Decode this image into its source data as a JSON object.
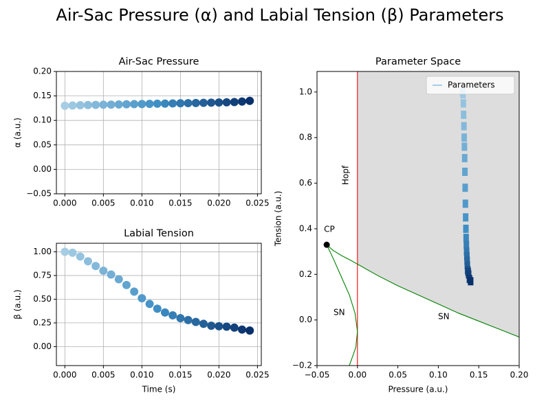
{
  "title": "Air-Sac Pressure (α) and Labial Tension (β) Parameters",
  "chart_data": [
    {
      "type": "scatter",
      "title": "Air-Sac Pressure",
      "ylabel": "α (a.u.)",
      "x": [
        0,
        0.001,
        0.002,
        0.003,
        0.004,
        0.005,
        0.006,
        0.007,
        0.008,
        0.009,
        0.01,
        0.011,
        0.012,
        0.013,
        0.014,
        0.015,
        0.016,
        0.017,
        0.018,
        0.019,
        0.02,
        0.021,
        0.022,
        0.023,
        0.024
      ],
      "values": [
        0.13,
        0.1305,
        0.131,
        0.1313,
        0.1317,
        0.132,
        0.1323,
        0.1326,
        0.1329,
        0.1332,
        0.1335,
        0.1338,
        0.1341,
        0.1344,
        0.1347,
        0.135,
        0.1353,
        0.1356,
        0.1359,
        0.1362,
        0.1366,
        0.137,
        0.1375,
        0.1385,
        0.14
      ],
      "colors": [
        "#a6cde4",
        "#3f8fc5",
        "#08306b"
      ],
      "xlim": [
        -0.0011,
        0.0255
      ],
      "ylim": [
        -0.05,
        0.2
      ],
      "xticks": [
        {
          "value": 0,
          "label": "0.000"
        },
        0.005,
        {
          "value": 0.01,
          "label": "0.010"
        },
        0.015,
        {
          "value": 0.02,
          "label": "0.020"
        },
        0.025
      ],
      "yticks": [
        {
          "value": -0.05,
          "label": "−0.05"
        },
        {
          "value": 0,
          "label": "0.00"
        },
        0.05,
        {
          "value": 0.1,
          "label": "0.10"
        },
        0.15,
        {
          "value": 0.2,
          "label": "0.20"
        }
      ],
      "grid": true
    },
    {
      "type": "scatter",
      "title": "Labial Tension",
      "ylabel": "β (a.u.)",
      "xlabel": "Time (s)",
      "x": [
        0,
        0.001,
        0.002,
        0.003,
        0.004,
        0.005,
        0.006,
        0.007,
        0.008,
        0.009,
        0.01,
        0.011,
        0.012,
        0.013,
        0.014,
        0.015,
        0.016,
        0.017,
        0.018,
        0.019,
        0.02,
        0.021,
        0.022,
        0.023,
        0.024
      ],
      "values": [
        1.0,
        0.99,
        0.95,
        0.9,
        0.85,
        0.8,
        0.76,
        0.71,
        0.65,
        0.58,
        0.51,
        0.45,
        0.4,
        0.36,
        0.33,
        0.3,
        0.28,
        0.26,
        0.24,
        0.22,
        0.215,
        0.21,
        0.2,
        0.18,
        0.17
      ],
      "colors": [
        "#a6cde4",
        "#3f8fc5",
        "#08306b"
      ],
      "xlim": [
        -0.0011,
        0.0255
      ],
      "ylim": [
        -0.2,
        1.09
      ],
      "xticks": [
        {
          "value": 0,
          "label": "0.000"
        },
        0.005,
        {
          "value": 0.01,
          "label": "0.010"
        },
        0.015,
        {
          "value": 0.02,
          "label": "0.020"
        },
        0.025
      ],
      "yticks": [
        {
          "value": 0,
          "label": "0.00"
        },
        0.25,
        {
          "value": 0.5,
          "label": "0.50"
        },
        0.75,
        {
          "value": 1,
          "label": "1.00"
        }
      ],
      "grid": true
    },
    {
      "type": "parameter_space",
      "title": "Parameter Space",
      "xlabel": "Pressure (a.u.)",
      "ylabel": "Tension (a.u.)",
      "series": [
        {
          "name": "Parameters",
          "x": [
            0.13,
            0.1305,
            0.131,
            0.1313,
            0.1317,
            0.132,
            0.1323,
            0.1326,
            0.1329,
            0.1332,
            0.1335,
            0.1338,
            0.1341,
            0.1344,
            0.1347,
            0.135,
            0.1353,
            0.1356,
            0.1359,
            0.1362,
            0.1366,
            0.137,
            0.1375,
            0.1385,
            0.14
          ],
          "values": [
            1.0,
            0.99,
            0.95,
            0.9,
            0.85,
            0.8,
            0.76,
            0.71,
            0.65,
            0.58,
            0.51,
            0.45,
            0.4,
            0.36,
            0.33,
            0.3,
            0.28,
            0.26,
            0.24,
            0.22,
            0.215,
            0.21,
            0.2,
            0.18,
            0.17
          ]
        }
      ],
      "colors": [
        "#a6cde4",
        "#3f8fc5",
        "#08306b"
      ],
      "lines": [
        {
          "label": "Hopf",
          "color": "red",
          "x": [
            0,
            0
          ],
          "values": [
            -0.2,
            1.09
          ]
        },
        {
          "label": "SN",
          "color": "green",
          "x": [
            -0.038,
            -0.03,
            -0.02,
            -0.01,
            0,
            0.025,
            0.05,
            0.075,
            0.1,
            0.125,
            0.15,
            0.175,
            0.2
          ],
          "values": [
            0.33,
            0.305,
            0.283,
            0.265,
            0.245,
            0.195,
            0.15,
            0.11,
            0.07,
            0.03,
            -0.005,
            -0.04,
            -0.075
          ]
        },
        {
          "label": "SN",
          "color": "green",
          "x": [
            -0.038,
            -0.03,
            -0.02,
            -0.01,
            -0.003,
            0,
            -0.002,
            -0.01
          ],
          "values": [
            0.33,
            0.27,
            0.19,
            0.11,
            0.03,
            -0.05,
            -0.12,
            -0.2
          ]
        }
      ],
      "points": [
        {
          "label": "CP",
          "x": -0.038,
          "y": 0.33,
          "color": "black"
        }
      ],
      "shade_color": "#dddddd",
      "legend": "upper right",
      "xlim": [
        -0.05,
        0.2
      ],
      "ylim": [
        -0.2,
        1.09
      ],
      "xticks": [
        {
          "value": -0.05,
          "label": "−0.05"
        },
        {
          "value": 0,
          "label": "0.00"
        },
        0.05,
        {
          "value": 0.1,
          "label": "0.10"
        },
        0.15,
        {
          "value": 0.2,
          "label": "0.20"
        }
      ],
      "yticks": [
        {
          "value": -0.2,
          "label": "−0.2"
        },
        {
          "value": 0,
          "label": "0.0"
        },
        0.2,
        0.4,
        0.6,
        0.8,
        {
          "value": 1,
          "label": "1.0"
        }
      ],
      "grid": false
    }
  ]
}
